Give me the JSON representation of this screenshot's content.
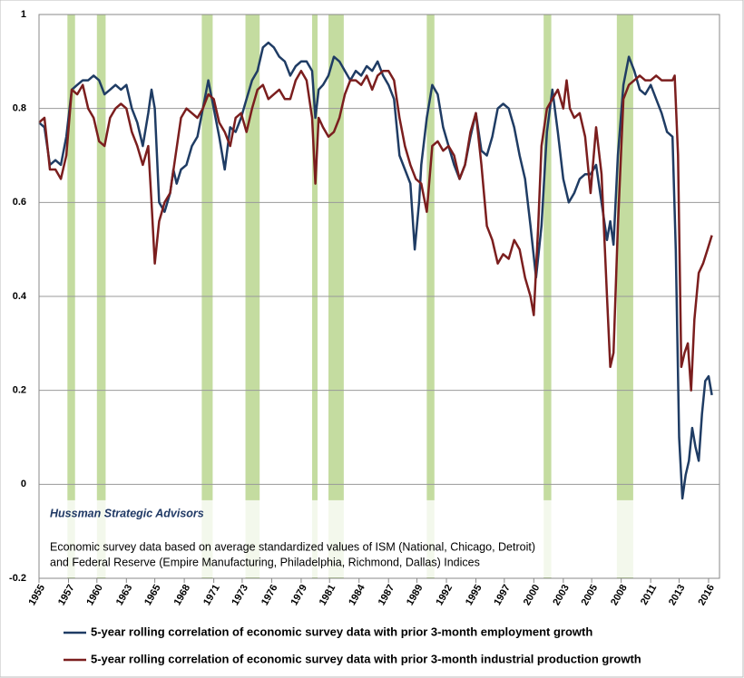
{
  "chart_data": {
    "type": "line",
    "annotations": [
      "Hussman Strategic Advisors",
      "Economic  survey data based on average standardized values of ISM (National, Chicago, Detroit)",
      "and Federal Reserve (Empire Manufacturing, Philadelphia, Richmond, Dallas) Indices"
    ],
    "recession_color": "#c4dca0",
    "recessions": [
      [
        1957.6,
        1958.3
      ],
      [
        1960.3,
        1961.1
      ],
      [
        1969.9,
        1970.9
      ],
      [
        1973.9,
        1975.2
      ],
      [
        1980.0,
        1980.5
      ],
      [
        1981.5,
        1982.9
      ],
      [
        1990.5,
        1991.2
      ],
      [
        2001.2,
        2001.9
      ],
      [
        2007.9,
        2009.4
      ]
    ],
    "xlim": [
      1955,
      2017.3
    ],
    "xticks": [
      {
        "value": 1955,
        "label": "1955"
      },
      {
        "value": 1957.7,
        "label": "1957"
      },
      {
        "value": 1960.3,
        "label": "1960"
      },
      {
        "value": 1963,
        "label": "1963"
      },
      {
        "value": 1965.6,
        "label": "1965"
      },
      {
        "value": 1968.3,
        "label": "1968"
      },
      {
        "value": 1971,
        "label": "1971"
      },
      {
        "value": 1973.6,
        "label": "1973"
      },
      {
        "value": 1976.3,
        "label": "1976"
      },
      {
        "value": 1979,
        "label": "1979"
      },
      {
        "value": 1981.6,
        "label": "1981"
      },
      {
        "value": 1984.3,
        "label": "1984"
      },
      {
        "value": 1987,
        "label": "1987"
      },
      {
        "value": 1989.6,
        "label": "1989"
      },
      {
        "value": 1992.3,
        "label": "1992"
      },
      {
        "value": 1995,
        "label": "1995"
      },
      {
        "value": 1997.6,
        "label": "1997"
      },
      {
        "value": 2000.3,
        "label": "2000"
      },
      {
        "value": 2003,
        "label": "2003"
      },
      {
        "value": 2005.6,
        "label": "2005"
      },
      {
        "value": 2008.3,
        "label": "2008"
      },
      {
        "value": 2011,
        "label": "2011"
      },
      {
        "value": 2013.6,
        "label": "2013"
      },
      {
        "value": 2016.3,
        "label": "2016"
      }
    ],
    "ylim": [
      -0.2,
      1
    ],
    "yticks": [
      -0.2,
      0,
      0.2,
      0.4,
      0.6,
      0.8,
      1
    ],
    "grid": true,
    "series": [
      {
        "name": "5-year rolling correlation of economic survey data with prior 3-month employment growth",
        "color": "#1f3c64",
        "x": [
          1955,
          1955.5,
          1956,
          1956.5,
          1957,
          1957.5,
          1958,
          1958.5,
          1959,
          1959.5,
          1960,
          1960.5,
          1961,
          1961.5,
          1962,
          1962.5,
          1963,
          1963.5,
          1964,
          1964.5,
          1965,
          1965.3,
          1965.6,
          1966,
          1966.5,
          1967,
          1967.3,
          1967.6,
          1968,
          1968.5,
          1969,
          1969.5,
          1970,
          1970.5,
          1971,
          1971.5,
          1972,
          1972.5,
          1973,
          1973.5,
          1974,
          1974.5,
          1975,
          1975.5,
          1976,
          1976.5,
          1977,
          1977.5,
          1978,
          1978.5,
          1979,
          1979.5,
          1980,
          1980.3,
          1980.6,
          1981,
          1981.5,
          1982,
          1982.5,
          1983,
          1983.5,
          1984,
          1984.5,
          1985,
          1985.5,
          1986,
          1986.5,
          1987,
          1987.5,
          1988,
          1988.5,
          1989,
          1989.4,
          1989.8,
          1990,
          1990.5,
          1991,
          1991.5,
          1992,
          1992.5,
          1993,
          1993.5,
          1994,
          1994.5,
          1995,
          1995.5,
          1996,
          1996.5,
          1997,
          1997.5,
          1998,
          1998.5,
          1999,
          1999.5,
          2000,
          2000.5,
          2001,
          2001.5,
          2002,
          2002.5,
          2003,
          2003.5,
          2004,
          2004.5,
          2005,
          2005.5,
          2006,
          2006.5,
          2007,
          2007.3,
          2007.6,
          2008,
          2008.5,
          2009,
          2009.5,
          2010,
          2010.5,
          2011,
          2011.5,
          2012,
          2012.5,
          2013,
          2013.3,
          2013.6,
          2013.9,
          2014.2,
          2014.5,
          2014.8,
          2015.1,
          2015.4,
          2015.7,
          2016,
          2016.3,
          2016.6
        ],
        "values": [
          0.77,
          0.76,
          0.68,
          0.69,
          0.68,
          0.74,
          0.84,
          0.85,
          0.86,
          0.86,
          0.87,
          0.86,
          0.83,
          0.84,
          0.85,
          0.84,
          0.85,
          0.8,
          0.77,
          0.72,
          0.79,
          0.84,
          0.8,
          0.6,
          0.58,
          0.62,
          0.67,
          0.64,
          0.67,
          0.68,
          0.72,
          0.74,
          0.8,
          0.86,
          0.8,
          0.74,
          0.67,
          0.76,
          0.75,
          0.78,
          0.82,
          0.86,
          0.88,
          0.93,
          0.94,
          0.93,
          0.91,
          0.9,
          0.87,
          0.89,
          0.9,
          0.9,
          0.88,
          0.78,
          0.84,
          0.85,
          0.87,
          0.91,
          0.9,
          0.88,
          0.86,
          0.88,
          0.87,
          0.89,
          0.88,
          0.9,
          0.87,
          0.85,
          0.82,
          0.7,
          0.67,
          0.64,
          0.5,
          0.6,
          0.68,
          0.78,
          0.85,
          0.83,
          0.76,
          0.72,
          0.68,
          0.65,
          0.68,
          0.74,
          0.79,
          0.71,
          0.7,
          0.74,
          0.8,
          0.81,
          0.8,
          0.76,
          0.7,
          0.65,
          0.55,
          0.44,
          0.55,
          0.75,
          0.84,
          0.75,
          0.65,
          0.6,
          0.62,
          0.65,
          0.66,
          0.66,
          0.68,
          0.6,
          0.52,
          0.56,
          0.51,
          0.7,
          0.85,
          0.91,
          0.88,
          0.84,
          0.83,
          0.85,
          0.82,
          0.79,
          0.75,
          0.74,
          0.5,
          0.1,
          -0.03,
          0.02,
          0.05,
          0.12,
          0.08,
          0.05,
          0.15,
          0.22,
          0.23,
          0.19
        ]
      },
      {
        "name": "5-year rolling correlation of economic survey data with prior 3-month industrial production growth",
        "color": "#7b1e1e",
        "x": [
          1955,
          1955.5,
          1956,
          1956.5,
          1957,
          1957.5,
          1958,
          1958.5,
          1959,
          1959.5,
          1960,
          1960.5,
          1961,
          1961.5,
          1962,
          1962.5,
          1963,
          1963.5,
          1964,
          1964.5,
          1965,
          1965.3,
          1965.6,
          1966,
          1966.5,
          1967,
          1967.5,
          1968,
          1968.5,
          1969,
          1969.5,
          1970,
          1970.5,
          1971,
          1971.5,
          1972,
          1972.5,
          1973,
          1973.5,
          1974,
          1974.5,
          1975,
          1975.5,
          1976,
          1976.5,
          1977,
          1977.5,
          1978,
          1978.5,
          1979,
          1979.5,
          1980,
          1980.3,
          1980.6,
          1981,
          1981.5,
          1982,
          1982.5,
          1983,
          1983.5,
          1984,
          1984.5,
          1985,
          1985.5,
          1986,
          1986.5,
          1987,
          1987.5,
          1988,
          1988.5,
          1989,
          1989.5,
          1990,
          1990.5,
          1991,
          1991.5,
          1992,
          1992.5,
          1993,
          1993.5,
          1994,
          1994.5,
          1995,
          1995.5,
          1996,
          1996.5,
          1997,
          1997.5,
          1998,
          1998.5,
          1999,
          1999.5,
          2000,
          2000.3,
          2000.7,
          2001,
          2001.5,
          2002,
          2002.5,
          2003,
          2003.3,
          2003.6,
          2004,
          2004.5,
          2005,
          2005.5,
          2006,
          2006.5,
          2007,
          2007.3,
          2007.6,
          2008,
          2008.5,
          2009,
          2009.5,
          2010,
          2010.5,
          2011,
          2011.5,
          2012,
          2012.5,
          2013,
          2013.2,
          2013.5,
          2013.8,
          2014.1,
          2014.4,
          2014.7,
          2015,
          2015.4,
          2015.8,
          2016.2,
          2016.6
        ],
        "values": [
          0.77,
          0.78,
          0.67,
          0.67,
          0.65,
          0.7,
          0.84,
          0.83,
          0.85,
          0.8,
          0.78,
          0.73,
          0.72,
          0.78,
          0.8,
          0.81,
          0.8,
          0.75,
          0.72,
          0.68,
          0.72,
          0.6,
          0.47,
          0.56,
          0.6,
          0.62,
          0.7,
          0.78,
          0.8,
          0.79,
          0.78,
          0.8,
          0.83,
          0.82,
          0.77,
          0.75,
          0.72,
          0.78,
          0.79,
          0.75,
          0.8,
          0.84,
          0.85,
          0.82,
          0.83,
          0.84,
          0.82,
          0.82,
          0.86,
          0.88,
          0.86,
          0.78,
          0.64,
          0.78,
          0.76,
          0.74,
          0.75,
          0.78,
          0.83,
          0.86,
          0.86,
          0.85,
          0.87,
          0.84,
          0.87,
          0.88,
          0.88,
          0.86,
          0.78,
          0.72,
          0.68,
          0.65,
          0.64,
          0.58,
          0.72,
          0.73,
          0.71,
          0.72,
          0.7,
          0.65,
          0.68,
          0.75,
          0.79,
          0.68,
          0.55,
          0.52,
          0.47,
          0.49,
          0.48,
          0.52,
          0.5,
          0.44,
          0.4,
          0.36,
          0.55,
          0.72,
          0.8,
          0.82,
          0.84,
          0.8,
          0.86,
          0.8,
          0.78,
          0.79,
          0.74,
          0.62,
          0.76,
          0.66,
          0.4,
          0.25,
          0.28,
          0.55,
          0.82,
          0.85,
          0.86,
          0.87,
          0.86,
          0.86,
          0.87,
          0.86,
          0.86,
          0.86,
          0.87,
          0.7,
          0.25,
          0.28,
          0.3,
          0.2,
          0.35,
          0.45,
          0.47,
          0.5,
          0.53
        ]
      }
    ]
  }
}
